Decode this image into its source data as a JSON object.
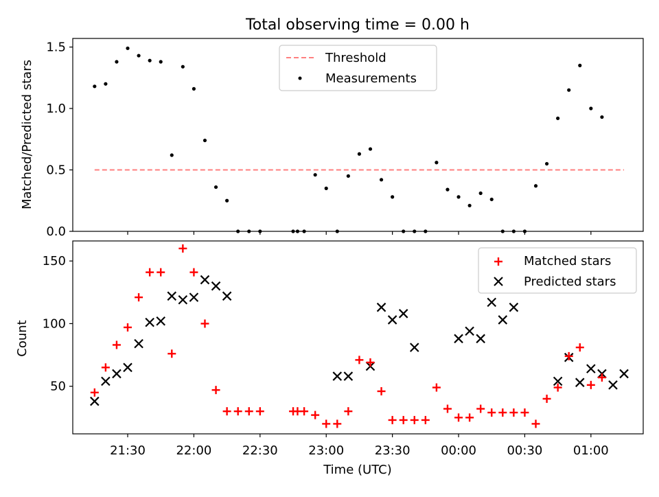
{
  "chart_data": [
    {
      "type": "scatter",
      "title": "Total observing time = 0.00 h",
      "xlabel": "",
      "ylabel": "Matched/Predicted stars",
      "ylim": [
        0,
        1.57
      ],
      "yticks": [
        "0.0",
        "0.5",
        "1.0",
        "1.5"
      ],
      "legend_position": "top-center",
      "threshold": {
        "name": "Threshold",
        "value": 0.5,
        "x_start": "21:15",
        "x_end": "01:15",
        "color": "#ff7f7f"
      },
      "series": [
        {
          "name": "Measurements",
          "color": "#000000",
          "x": [
            "21:15",
            "21:20",
            "21:25",
            "21:30",
            "21:35",
            "21:40",
            "21:45",
            "21:50",
            "21:55",
            "22:00",
            "22:05",
            "22:10",
            "22:15",
            "22:20",
            "22:25",
            "22:30",
            "22:45",
            "22:47",
            "22:50",
            "22:55",
            "23:00",
            "23:05",
            "23:10",
            "23:15",
            "23:20",
            "23:25",
            "23:30",
            "23:35",
            "23:40",
            "23:45",
            "23:50",
            "23:55",
            "00:00",
            "00:05",
            "00:10",
            "00:15",
            "00:20",
            "00:25",
            "00:30",
            "00:35",
            "00:40",
            "00:45",
            "00:50",
            "00:55",
            "01:00",
            "01:05",
            "01:10",
            "01:15"
          ],
          "y": [
            1.18,
            1.2,
            1.38,
            1.49,
            1.43,
            1.39,
            1.38,
            0.62,
            1.34,
            1.16,
            0.74,
            0.36,
            0.25,
            0.0,
            0.0,
            0.0,
            0.0,
            0.0,
            0.0,
            0.46,
            0.35,
            0.0,
            0.45,
            0.63,
            0.67,
            0.42,
            0.28,
            0.0,
            0.0,
            0.0,
            0.56,
            0.34,
            0.28,
            0.21,
            0.31,
            0.26,
            0.0,
            0.0,
            0.0,
            0.37,
            0.55,
            0.92,
            1.15,
            1.35,
            1.0,
            0.93,
            null,
            null
          ]
        }
      ]
    },
    {
      "type": "scatter",
      "title": "",
      "xlabel": "Time (UTC)",
      "ylabel": "Count",
      "ylim": [
        12,
        166
      ],
      "yticks": [
        "50",
        "100",
        "150"
      ],
      "xticks": [
        "21:30",
        "22:00",
        "22:30",
        "23:00",
        "23:30",
        "00:00",
        "00:30",
        "01:00"
      ],
      "legend_position": "top-right",
      "series": [
        {
          "name": "Matched stars",
          "marker": "+",
          "color": "#ff0000",
          "x": [
            "21:15",
            "21:20",
            "21:25",
            "21:30",
            "21:35",
            "21:40",
            "21:45",
            "21:50",
            "21:55",
            "22:00",
            "22:05",
            "22:10",
            "22:15",
            "22:20",
            "22:25",
            "22:30",
            "22:45",
            "22:47",
            "22:50",
            "22:55",
            "23:00",
            "23:05",
            "23:10",
            "23:15",
            "23:20",
            "23:25",
            "23:30",
            "23:35",
            "23:40",
            "23:45",
            "23:50",
            "23:55",
            "00:00",
            "00:05",
            "00:10",
            "00:15",
            "00:20",
            "00:25",
            "00:30",
            "00:35",
            "00:40",
            "00:45",
            "00:50",
            "00:55",
            "01:00",
            "01:05",
            "01:10",
            "01:15"
          ],
          "y": [
            45,
            65,
            83,
            97,
            121,
            141,
            141,
            76,
            160,
            141,
            100,
            47,
            30,
            30,
            30,
            30,
            30,
            30,
            30,
            27,
            20,
            20,
            30,
            71,
            69,
            46,
            23,
            23,
            23,
            23,
            49,
            32,
            25,
            25,
            32,
            29,
            29,
            29,
            29,
            20,
            40,
            49,
            74,
            81,
            51,
            57,
            null,
            null
          ]
        },
        {
          "name": "Predicted stars",
          "marker": "x",
          "color": "#000000",
          "x": [
            "21:15",
            "21:20",
            "21:25",
            "21:30",
            "21:35",
            "21:40",
            "21:45",
            "21:50",
            "21:55",
            "22:00",
            "22:05",
            "22:10",
            "22:15",
            "23:05",
            "23:10",
            "23:20",
            "23:25",
            "23:30",
            "23:35",
            "23:40",
            "00:00",
            "00:05",
            "00:10",
            "00:15",
            "00:20",
            "00:25",
            "00:45",
            "00:50",
            "00:55",
            "01:00",
            "01:05",
            "01:10",
            "01:15"
          ],
          "y": [
            38,
            54,
            60,
            65,
            84,
            101,
            102,
            122,
            119,
            121,
            135,
            130,
            122,
            58,
            58,
            66,
            113,
            103,
            108,
            81,
            88,
            94,
            88,
            117,
            103,
            113,
            54,
            73,
            53,
            64,
            60,
            51,
            60
          ]
        }
      ]
    }
  ]
}
